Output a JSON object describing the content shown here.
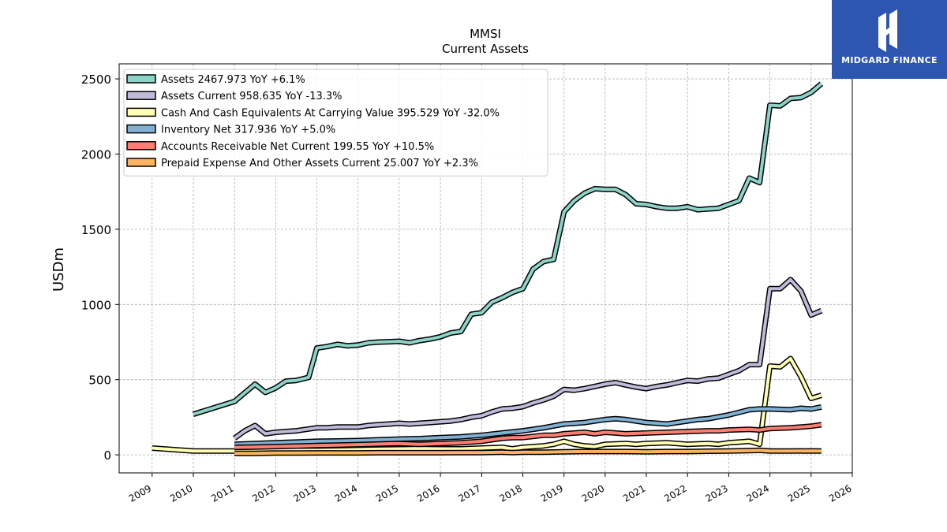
{
  "brand": {
    "name": "MIDGARD FINANCE",
    "color": "#2d56b0"
  },
  "chart_data": {
    "type": "line",
    "title": "MMSI",
    "subtitle": "Current  Assets",
    "xlabel": "",
    "ylabel": "USDm",
    "xlim": [
      2008.2,
      2026.0
    ],
    "ylim": [
      -120,
      2600
    ],
    "x_ticks": [
      "2009",
      "2010",
      "2011",
      "2012",
      "2013",
      "2014",
      "2015",
      "2016",
      "2017",
      "2018",
      "2019",
      "2020",
      "2021",
      "2022",
      "2023",
      "2024",
      "2025",
      "2026"
    ],
    "y_ticks": [
      0,
      500,
      1000,
      1500,
      2000,
      2500
    ],
    "grid": true,
    "legend_position": "top-left",
    "series": [
      {
        "name": "Assets  2467.973 YoY +6.1%",
        "color": "#8dd3c7",
        "points": [
          [
            2010.0,
            270
          ],
          [
            2011.0,
            355
          ],
          [
            2011.5,
            470
          ],
          [
            2011.75,
            415
          ],
          [
            2012.0,
            445
          ],
          [
            2012.25,
            490
          ],
          [
            2012.5,
            495
          ],
          [
            2012.8,
            515
          ],
          [
            2013.0,
            710
          ],
          [
            2013.25,
            720
          ],
          [
            2013.5,
            735
          ],
          [
            2013.75,
            725
          ],
          [
            2014.0,
            730
          ],
          [
            2014.25,
            745
          ],
          [
            2014.5,
            750
          ],
          [
            2014.75,
            752
          ],
          [
            2015.0,
            755
          ],
          [
            2015.25,
            745
          ],
          [
            2015.5,
            760
          ],
          [
            2015.75,
            770
          ],
          [
            2016.0,
            785
          ],
          [
            2016.25,
            810
          ],
          [
            2016.5,
            820
          ],
          [
            2016.75,
            935
          ],
          [
            2017.0,
            945
          ],
          [
            2017.25,
            1015
          ],
          [
            2017.5,
            1045
          ],
          [
            2017.75,
            1080
          ],
          [
            2018.0,
            1105
          ],
          [
            2018.25,
            1235
          ],
          [
            2018.5,
            1285
          ],
          [
            2018.75,
            1300
          ],
          [
            2019.0,
            1615
          ],
          [
            2019.25,
            1690
          ],
          [
            2019.5,
            1740
          ],
          [
            2019.75,
            1770
          ],
          [
            2020.0,
            1765
          ],
          [
            2020.25,
            1765
          ],
          [
            2020.5,
            1730
          ],
          [
            2020.75,
            1670
          ],
          [
            2021.0,
            1665
          ],
          [
            2021.25,
            1650
          ],
          [
            2021.5,
            1640
          ],
          [
            2021.75,
            1640
          ],
          [
            2022.0,
            1650
          ],
          [
            2022.25,
            1630
          ],
          [
            2022.5,
            1635
          ],
          [
            2022.75,
            1640
          ],
          [
            2023.0,
            1665
          ],
          [
            2023.25,
            1690
          ],
          [
            2023.5,
            1840
          ],
          [
            2023.75,
            1810
          ],
          [
            2024.0,
            2325
          ],
          [
            2024.25,
            2320
          ],
          [
            2024.5,
            2370
          ],
          [
            2024.75,
            2375
          ],
          [
            2025.0,
            2410
          ],
          [
            2025.25,
            2468
          ]
        ]
      },
      {
        "name": "Assets Current  958.635 YoY -13.3%",
        "color": "#bebada",
        "points": [
          [
            2011.0,
            110
          ],
          [
            2011.25,
            160
          ],
          [
            2011.5,
            195
          ],
          [
            2011.75,
            140
          ],
          [
            2012.0,
            150
          ],
          [
            2012.25,
            155
          ],
          [
            2012.5,
            160
          ],
          [
            2012.75,
            170
          ],
          [
            2013.0,
            180
          ],
          [
            2013.25,
            180
          ],
          [
            2013.5,
            185
          ],
          [
            2013.75,
            185
          ],
          [
            2014.0,
            185
          ],
          [
            2014.25,
            195
          ],
          [
            2014.5,
            200
          ],
          [
            2014.75,
            205
          ],
          [
            2015.0,
            210
          ],
          [
            2015.25,
            205
          ],
          [
            2015.5,
            210
          ],
          [
            2015.75,
            215
          ],
          [
            2016.0,
            220
          ],
          [
            2016.25,
            225
          ],
          [
            2016.5,
            235
          ],
          [
            2016.75,
            250
          ],
          [
            2017.0,
            260
          ],
          [
            2017.25,
            285
          ],
          [
            2017.5,
            305
          ],
          [
            2017.75,
            310
          ],
          [
            2018.0,
            320
          ],
          [
            2018.25,
            345
          ],
          [
            2018.5,
            365
          ],
          [
            2018.75,
            390
          ],
          [
            2019.0,
            435
          ],
          [
            2019.25,
            430
          ],
          [
            2019.5,
            440
          ],
          [
            2019.75,
            455
          ],
          [
            2020.0,
            470
          ],
          [
            2020.25,
            480
          ],
          [
            2020.5,
            465
          ],
          [
            2020.75,
            450
          ],
          [
            2021.0,
            440
          ],
          [
            2021.25,
            455
          ],
          [
            2021.5,
            465
          ],
          [
            2021.75,
            480
          ],
          [
            2022.0,
            495
          ],
          [
            2022.25,
            490
          ],
          [
            2022.5,
            505
          ],
          [
            2022.75,
            510
          ],
          [
            2023.0,
            535
          ],
          [
            2023.25,
            560
          ],
          [
            2023.5,
            600
          ],
          [
            2023.75,
            600
          ],
          [
            2024.0,
            1105
          ],
          [
            2024.25,
            1105
          ],
          [
            2024.5,
            1165
          ],
          [
            2024.75,
            1090
          ],
          [
            2025.0,
            930
          ],
          [
            2025.25,
            959
          ]
        ]
      },
      {
        "name": "Cash And Cash Equivalents At Carrying Value  395.529 YoY -32.0%",
        "color": "#ffffb3",
        "points": [
          [
            2009.0,
            45
          ],
          [
            2009.5,
            35
          ],
          [
            2010.0,
            25
          ],
          [
            2010.5,
            25
          ],
          [
            2011.0,
            25
          ],
          [
            2011.5,
            25
          ],
          [
            2012.0,
            28
          ],
          [
            2012.5,
            30
          ],
          [
            2013.0,
            30
          ],
          [
            2013.5,
            32
          ],
          [
            2014.0,
            35
          ],
          [
            2014.5,
            38
          ],
          [
            2015.0,
            40
          ],
          [
            2015.5,
            42
          ],
          [
            2016.0,
            40
          ],
          [
            2016.5,
            40
          ],
          [
            2017.0,
            45
          ],
          [
            2017.5,
            50
          ],
          [
            2017.75,
            40
          ],
          [
            2018.0,
            50
          ],
          [
            2018.5,
            60
          ],
          [
            2018.75,
            70
          ],
          [
            2019.0,
            90
          ],
          [
            2019.25,
            70
          ],
          [
            2019.5,
            60
          ],
          [
            2019.75,
            55
          ],
          [
            2020.0,
            70
          ],
          [
            2020.5,
            75
          ],
          [
            2020.75,
            70
          ],
          [
            2021.0,
            75
          ],
          [
            2021.5,
            80
          ],
          [
            2021.75,
            75
          ],
          [
            2022.0,
            70
          ],
          [
            2022.5,
            75
          ],
          [
            2022.75,
            70
          ],
          [
            2023.0,
            80
          ],
          [
            2023.25,
            85
          ],
          [
            2023.5,
            90
          ],
          [
            2023.75,
            70
          ],
          [
            2024.0,
            590
          ],
          [
            2024.25,
            585
          ],
          [
            2024.5,
            640
          ],
          [
            2024.75,
            520
          ],
          [
            2025.0,
            375
          ],
          [
            2025.25,
            396
          ]
        ]
      },
      {
        "name": "Inventory Net  317.936 YoY +5.0%",
        "color": "#80b1d3",
        "points": [
          [
            2011.0,
            70
          ],
          [
            2011.5,
            75
          ],
          [
            2012.0,
            80
          ],
          [
            2012.5,
            85
          ],
          [
            2013.0,
            90
          ],
          [
            2013.5,
            92
          ],
          [
            2014.0,
            95
          ],
          [
            2014.5,
            100
          ],
          [
            2015.0,
            105
          ],
          [
            2015.5,
            108
          ],
          [
            2016.0,
            115
          ],
          [
            2016.5,
            120
          ],
          [
            2017.0,
            130
          ],
          [
            2017.5,
            145
          ],
          [
            2018.0,
            160
          ],
          [
            2018.5,
            180
          ],
          [
            2019.0,
            205
          ],
          [
            2019.5,
            215
          ],
          [
            2020.0,
            235
          ],
          [
            2020.25,
            240
          ],
          [
            2020.5,
            235
          ],
          [
            2021.0,
            215
          ],
          [
            2021.25,
            210
          ],
          [
            2021.5,
            205
          ],
          [
            2022.0,
            225
          ],
          [
            2022.25,
            235
          ],
          [
            2022.5,
            240
          ],
          [
            2023.0,
            265
          ],
          [
            2023.5,
            300
          ],
          [
            2023.75,
            305
          ],
          [
            2024.0,
            305
          ],
          [
            2024.5,
            300
          ],
          [
            2024.75,
            310
          ],
          [
            2025.0,
            305
          ],
          [
            2025.25,
            318
          ]
        ]
      },
      {
        "name": "Accounts Receivable Net Current  199.55 YoY +10.5%",
        "color": "#fb8072",
        "points": [
          [
            2011.0,
            50
          ],
          [
            2011.5,
            52
          ],
          [
            2012.0,
            55
          ],
          [
            2012.5,
            58
          ],
          [
            2013.0,
            62
          ],
          [
            2013.5,
            65
          ],
          [
            2014.0,
            68
          ],
          [
            2014.5,
            72
          ],
          [
            2015.0,
            75
          ],
          [
            2015.5,
            70
          ],
          [
            2016.0,
            75
          ],
          [
            2016.5,
            80
          ],
          [
            2017.0,
            90
          ],
          [
            2017.25,
            100
          ],
          [
            2017.5,
            110
          ],
          [
            2017.75,
            115
          ],
          [
            2018.0,
            115
          ],
          [
            2018.5,
            130
          ],
          [
            2018.75,
            130
          ],
          [
            2019.0,
            140
          ],
          [
            2019.5,
            150
          ],
          [
            2019.75,
            140
          ],
          [
            2020.0,
            150
          ],
          [
            2020.25,
            145
          ],
          [
            2020.5,
            140
          ],
          [
            2021.0,
            145
          ],
          [
            2021.5,
            150
          ],
          [
            2022.0,
            155
          ],
          [
            2022.5,
            160
          ],
          [
            2022.75,
            160
          ],
          [
            2023.0,
            165
          ],
          [
            2023.5,
            170
          ],
          [
            2023.75,
            165
          ],
          [
            2024.0,
            175
          ],
          [
            2024.5,
            180
          ],
          [
            2025.0,
            190
          ],
          [
            2025.25,
            200
          ]
        ]
      },
      {
        "name": "Prepaid Expense And Other Assets Current  25.007 YoY +2.3%",
        "color": "#fdb462",
        "points": [
          [
            2011.0,
            10
          ],
          [
            2011.5,
            10
          ],
          [
            2012.0,
            12
          ],
          [
            2012.5,
            12
          ],
          [
            2013.0,
            13
          ],
          [
            2013.5,
            13
          ],
          [
            2014.0,
            13
          ],
          [
            2014.5,
            14
          ],
          [
            2015.0,
            14
          ],
          [
            2015.5,
            14
          ],
          [
            2016.0,
            14
          ],
          [
            2016.5,
            15
          ],
          [
            2017.0,
            15
          ],
          [
            2017.5,
            18
          ],
          [
            2017.75,
            15
          ],
          [
            2018.0,
            18
          ],
          [
            2018.5,
            18
          ],
          [
            2019.0,
            20
          ],
          [
            2019.5,
            22
          ],
          [
            2020.0,
            22
          ],
          [
            2020.5,
            22
          ],
          [
            2021.0,
            20
          ],
          [
            2021.5,
            22
          ],
          [
            2022.0,
            22
          ],
          [
            2022.5,
            24
          ],
          [
            2023.0,
            25
          ],
          [
            2023.5,
            28
          ],
          [
            2023.75,
            30
          ],
          [
            2024.0,
            25
          ],
          [
            2024.5,
            25
          ],
          [
            2025.0,
            26
          ],
          [
            2025.25,
            25
          ]
        ]
      }
    ]
  }
}
